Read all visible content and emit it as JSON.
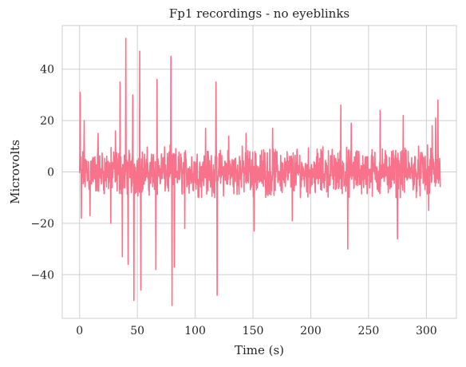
{
  "chart_data": {
    "type": "line",
    "title": "Fp1 recordings - no eyeblinks",
    "xlabel": "Time (s)",
    "ylabel": "Microvolts",
    "xlim": [
      -15,
      326
    ],
    "ylim": [
      -57,
      57
    ],
    "xticks": [
      0,
      50,
      100,
      150,
      200,
      250,
      300
    ],
    "yticks": [
      -40,
      -20,
      0,
      20,
      40
    ],
    "xtick_labels": [
      "0",
      "50",
      "100",
      "150",
      "200",
      "250",
      "300"
    ],
    "ytick_labels": [
      "−40",
      "−20",
      "0",
      "20",
      "40"
    ],
    "grid": true,
    "color": "#f7728a",
    "series": [
      {
        "x_start": 0,
        "x_end": 312,
        "typical_range": [
          -10,
          11
        ],
        "peaks": [
          {
            "x": 0.5,
            "y": 31
          },
          {
            "x": 1.5,
            "y": -18
          },
          {
            "x": 4,
            "y": 20
          },
          {
            "x": 9,
            "y": -17
          },
          {
            "x": 16,
            "y": 15
          },
          {
            "x": 27,
            "y": -20
          },
          {
            "x": 31,
            "y": 16
          },
          {
            "x": 35,
            "y": 35
          },
          {
            "x": 37,
            "y": -33
          },
          {
            "x": 40,
            "y": 52
          },
          {
            "x": 42,
            "y": -36
          },
          {
            "x": 46,
            "y": 30
          },
          {
            "x": 47,
            "y": -50
          },
          {
            "x": 52,
            "y": 47
          },
          {
            "x": 53,
            "y": -46
          },
          {
            "x": 66,
            "y": -38
          },
          {
            "x": 67,
            "y": 36
          },
          {
            "x": 79,
            "y": 45
          },
          {
            "x": 80,
            "y": -52
          },
          {
            "x": 82,
            "y": -37
          },
          {
            "x": 91,
            "y": -22
          },
          {
            "x": 109,
            "y": 17
          },
          {
            "x": 118,
            "y": 35
          },
          {
            "x": 119,
            "y": -48
          },
          {
            "x": 129,
            "y": 14
          },
          {
            "x": 144,
            "y": 15
          },
          {
            "x": 151,
            "y": -23
          },
          {
            "x": 167,
            "y": 17
          },
          {
            "x": 184,
            "y": -19
          },
          {
            "x": 226,
            "y": 26
          },
          {
            "x": 232,
            "y": -30
          },
          {
            "x": 235,
            "y": 19
          },
          {
            "x": 260,
            "y": 24
          },
          {
            "x": 275,
            "y": -26
          },
          {
            "x": 280,
            "y": 22
          },
          {
            "x": 302,
            "y": -15
          },
          {
            "x": 305,
            "y": 18
          },
          {
            "x": 308,
            "y": 21
          },
          {
            "x": 310,
            "y": 28
          }
        ]
      }
    ]
  }
}
